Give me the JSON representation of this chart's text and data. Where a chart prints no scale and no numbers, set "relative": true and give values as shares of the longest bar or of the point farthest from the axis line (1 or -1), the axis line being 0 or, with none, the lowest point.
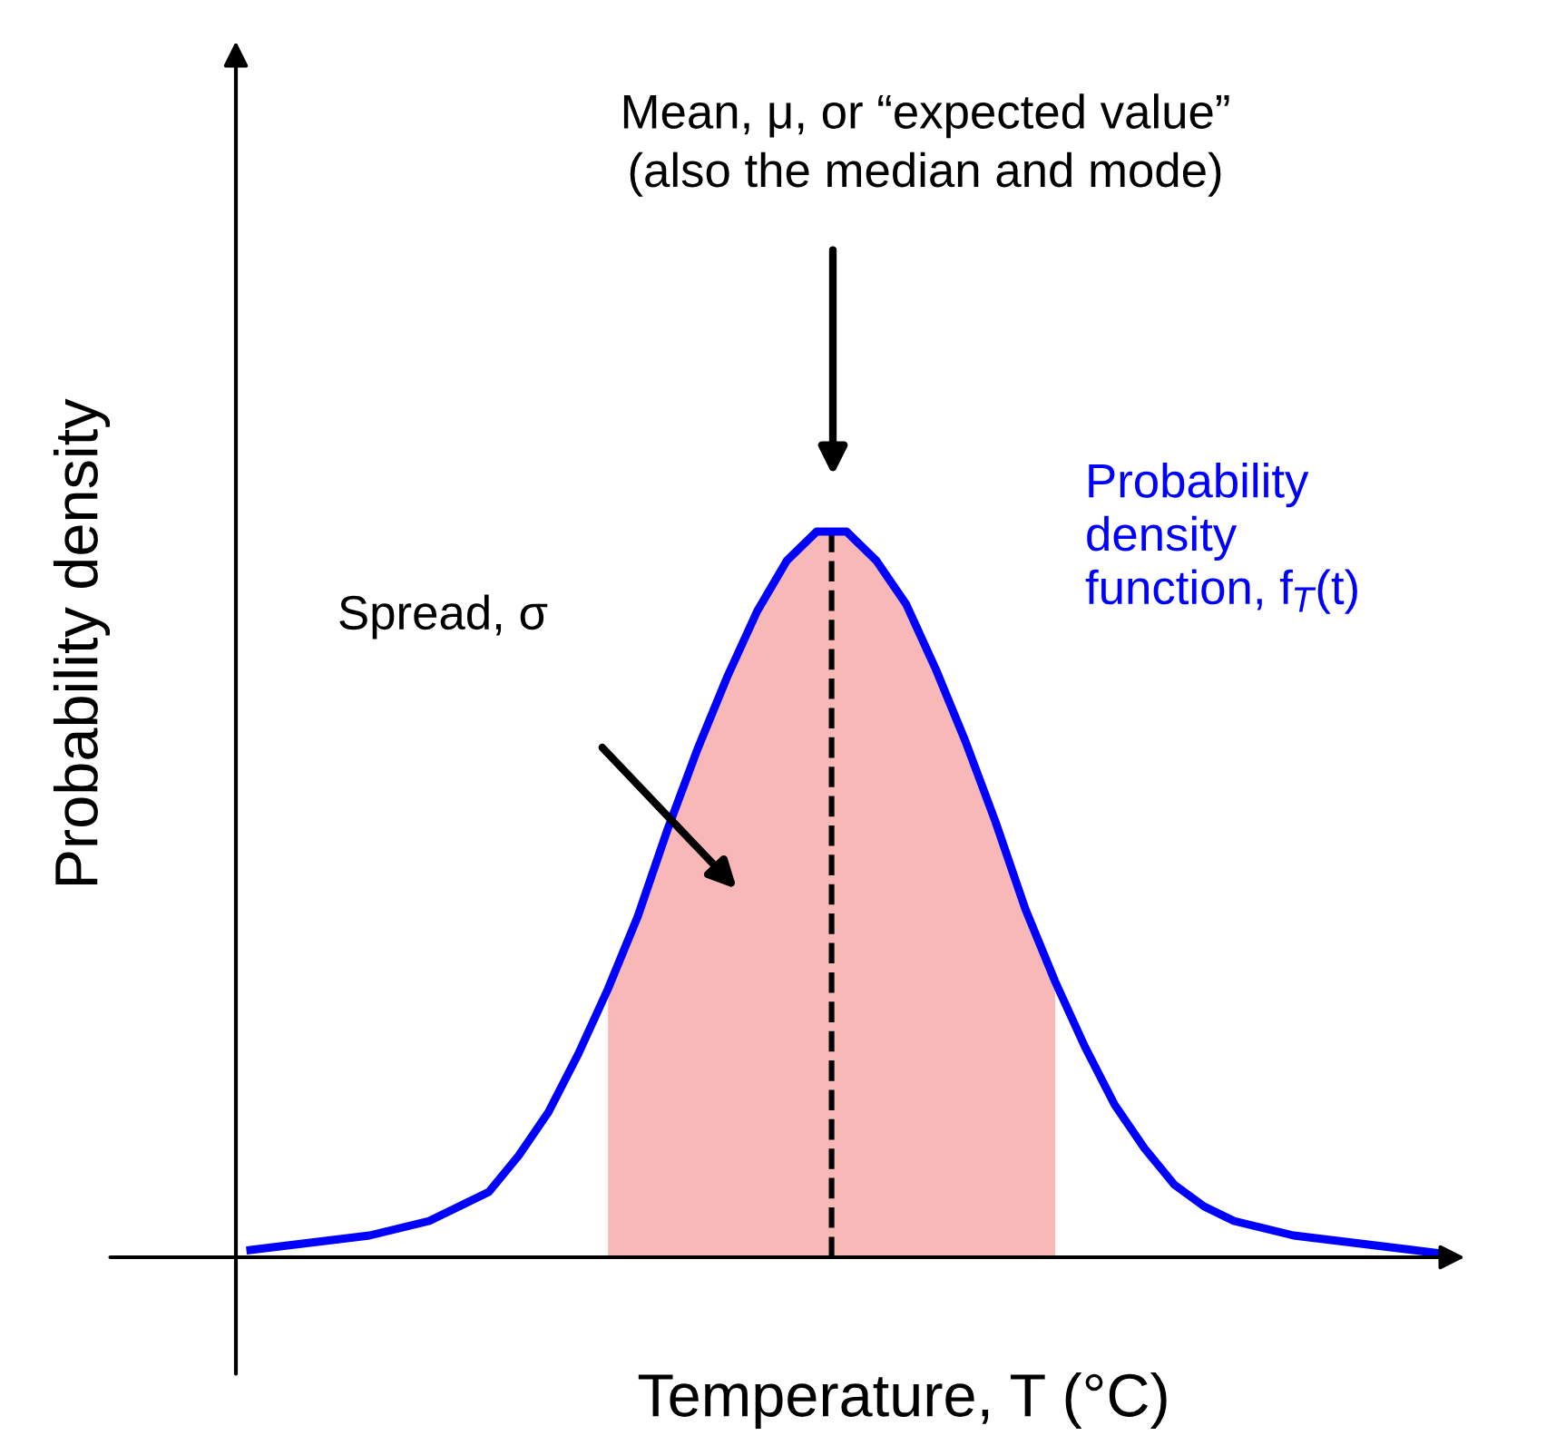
{
  "chart_data": {
    "type": "line",
    "relative": true,
    "xlabel": "Temperature, T (°C)",
    "ylabel": "Probability density",
    "categories": [
      null,
      null,
      null,
      null,
      null,
      null,
      null,
      null,
      null,
      null,
      null,
      null,
      null,
      null,
      null,
      null,
      null,
      null,
      null,
      null,
      null,
      null,
      null,
      null,
      null,
      null,
      null,
      null,
      null,
      null,
      null,
      null,
      null,
      null,
      null,
      null,
      null,
      null,
      null,
      null,
      null
    ],
    "series": [
      {
        "name": "Probability\ndensity\nfunction, f$_{T}$(t)",
        "color": "#0000ff",
        "values": [
          0.01,
          0.015,
          0.02,
          0.025,
          0.03,
          0.04,
          0.05,
          0.07,
          0.09,
          0.14,
          0.2,
          0.28,
          0.37,
          0.47,
          0.59,
          0.7,
          0.8,
          0.89,
          0.96,
          1,
          1,
          0.96,
          0.9,
          0.81,
          0.71,
          0.6,
          0.48,
          0.38,
          0.29,
          0.21,
          0.15,
          0.1,
          0.07,
          0.05,
          0.04,
          0.03,
          0.025,
          0.02,
          0.015,
          0.01,
          0.005
        ]
      },
      {
        "type": "area",
        "color": "#f9b8b8",
        "values": [
          null,
          null,
          null,
          null,
          null,
          null,
          null,
          null,
          null,
          null,
          null,
          null,
          0.37,
          0.47,
          0.59,
          0.7,
          0.8,
          0.89,
          0.96,
          1,
          1,
          0.96,
          0.9,
          0.81,
          0.71,
          0.6,
          0.48,
          0.38,
          null,
          null,
          null,
          null,
          null,
          null,
          null,
          null,
          null,
          null,
          null,
          null,
          null
        ]
      }
    ],
    "annotations": [
      "Mean, μ, or “expected value”\n(also the median and mode)",
      "Spread, σ"
    ],
    "legend": false,
    "marker": "none",
    "line_style": "solid"
  }
}
